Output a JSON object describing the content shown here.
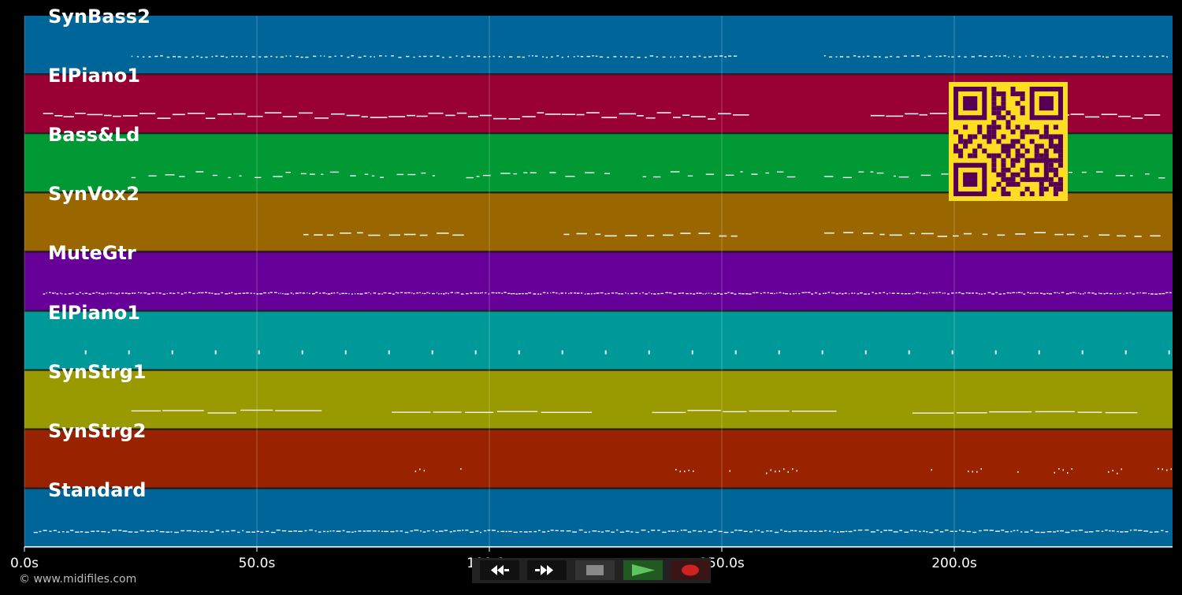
{
  "tracks": [
    {
      "name": "SynBass2",
      "color": "#006699"
    },
    {
      "name": "ElPiano1",
      "color": "#990033"
    },
    {
      "name": "Bass&Ld",
      "color": "#009933"
    },
    {
      "name": "SynVox2",
      "color": "#996600"
    },
    {
      "name": "MuteGtr",
      "color": "#660099"
    },
    {
      "name": "ElPiano1",
      "color": "#009999"
    },
    {
      "name": "SynStrg1",
      "color": "#999900"
    },
    {
      "name": "SynStrg2",
      "color": "#992200"
    },
    {
      "name": "Standard",
      "color": "#006699"
    }
  ],
  "timeline": {
    "ticks": [
      {
        "value": 0,
        "label": "0.0s"
      },
      {
        "value": 50,
        "label": "50.0s"
      },
      {
        "value": 100,
        "label": "100.0s"
      },
      {
        "value": 150,
        "label": "150.0s"
      },
      {
        "value": 200,
        "label": "200.0s"
      }
    ]
  },
  "footer": {
    "copyright": "© www.midifiles.com"
  },
  "transport": {
    "rewind_icon": "rewind-icon",
    "fast_forward_icon": "fast-forward-icon",
    "stop_icon": "stop-icon",
    "play_icon": "play-icon",
    "record_icon": "record-icon",
    "colors": {
      "play": "#2e8b2e",
      "record": "#cc2222",
      "stop": "#888888"
    }
  },
  "overlay": {
    "qr_icon": "qr-code-icon",
    "qr_fg": "#550055",
    "qr_bg": "#ffdd22"
  }
}
